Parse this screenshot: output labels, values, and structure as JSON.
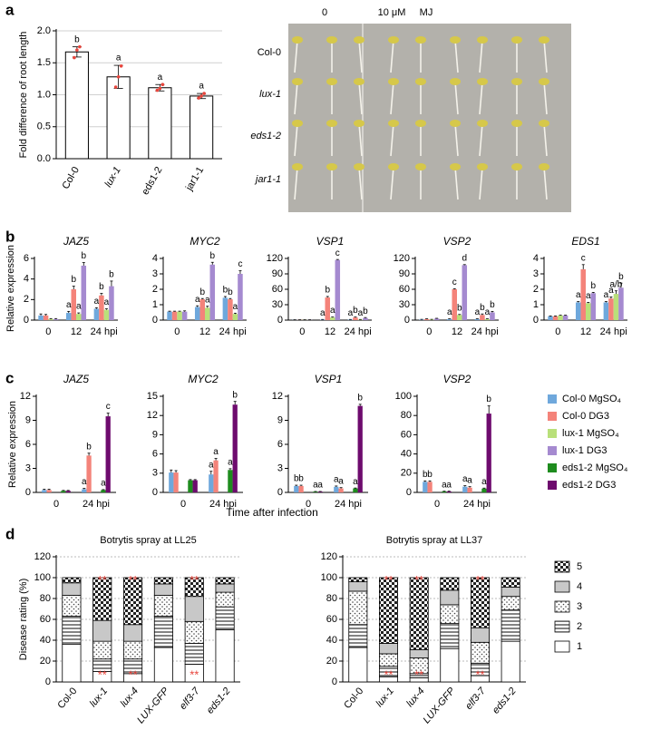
{
  "panel_labels": [
    "a",
    "b",
    "c",
    "d"
  ],
  "photo": {
    "column_labels": [
      "0",
      "10 μM",
      "MJ"
    ],
    "row_labels": [
      "Col-0",
      "lux-1",
      "eds1-2",
      "jar1-1"
    ]
  },
  "chart_data": [
    {
      "type": "bar",
      "categories": [
        "Col-0",
        "lux-1",
        "eds1-2",
        "jar1-1"
      ],
      "values": [
        1.67,
        1.28,
        1.11,
        0.98
      ],
      "errors": [
        0.08,
        0.18,
        0.05,
        0.04
      ],
      "letters": [
        "b",
        "a",
        "a",
        "a"
      ],
      "points": [
        [
          1.58,
          1.7,
          1.75
        ],
        [
          1.12,
          1.28,
          1.45
        ],
        [
          1.07,
          1.1,
          1.16
        ],
        [
          0.95,
          0.98,
          1.02
        ]
      ],
      "color": "#ffffff",
      "point_color": "#e8453c",
      "ylabel": "Fold difference of root length",
      "ylim": [
        0,
        2
      ],
      "yticks": [
        {
          "value": 0,
          "label": "0.0"
        },
        0.5,
        {
          "value": 1,
          "label": "1.0"
        },
        1.5,
        {
          "value": 2,
          "label": "2.0"
        }
      ],
      "grid": true
    },
    {
      "type": "groupedbar",
      "title": "JAZ5",
      "ylabel": "Relative expression",
      "categories": [
        "0",
        "12",
        "24 hpi"
      ],
      "ylim": [
        0,
        6
      ],
      "yticks": [
        0,
        2,
        4,
        6
      ],
      "series": [
        {
          "color": "#6fa8dc",
          "values": [
            0.45,
            0.7,
            1.1
          ],
          "errors": [
            0.15,
            0.15,
            0.1
          ],
          "letters": [
            null,
            "a",
            "a"
          ]
        },
        {
          "color": "#f4837a",
          "values": [
            0.45,
            3.0,
            2.4
          ],
          "errors": [
            0.1,
            0.3,
            0.2
          ],
          "letters": [
            null,
            "b",
            "b"
          ]
        },
        {
          "color": "#b9e07a",
          "values": [
            0.1,
            0.6,
            1.0
          ],
          "errors": [
            0.05,
            0.1,
            0.1
          ],
          "letters": [
            null,
            "a",
            "a"
          ]
        },
        {
          "color": "#a58ad0",
          "values": [
            0.1,
            5.3,
            3.3
          ],
          "errors": [
            0.05,
            0.3,
            0.5
          ],
          "letters": [
            null,
            "b",
            "b"
          ]
        }
      ]
    },
    {
      "type": "groupedbar",
      "title": "MYC2",
      "categories": [
        "0",
        "12",
        "24 hpi"
      ],
      "ylim": [
        0,
        4
      ],
      "yticks": [
        0,
        1,
        2,
        3,
        4
      ],
      "series": [
        {
          "color": "#6fa8dc",
          "values": [
            0.55,
            0.85,
            1.45
          ],
          "errors": [
            0.03,
            0.08,
            0.08
          ],
          "letters": [
            null,
            "a",
            "b"
          ]
        },
        {
          "color": "#f4837a",
          "values": [
            0.55,
            1.35,
            1.35
          ],
          "errors": [
            0.03,
            0.05,
            0.05
          ],
          "letters": [
            null,
            "b",
            "b"
          ]
        },
        {
          "color": "#b9e07a",
          "values": [
            0.55,
            0.8,
            0.4
          ],
          "errors": [
            0.03,
            0.1,
            0.05
          ],
          "letters": [
            null,
            "a",
            "a"
          ]
        },
        {
          "color": "#a58ad0",
          "values": [
            0.55,
            3.6,
            3.0
          ],
          "errors": [
            0.05,
            0.15,
            0.2
          ],
          "letters": [
            null,
            "b",
            "c"
          ]
        }
      ]
    },
    {
      "type": "groupedbar",
      "title": "VSP1",
      "categories": [
        "0",
        "12",
        "24 hpi"
      ],
      "ylim": [
        0,
        120
      ],
      "yticks": [
        0,
        30,
        60,
        90,
        120
      ],
      "series": [
        {
          "color": "#6fa8dc",
          "values": [
            0.5,
            1,
            1
          ],
          "errors": [
            0.2,
            0.3,
            0.3
          ],
          "letters": [
            null,
            "a",
            "a"
          ]
        },
        {
          "color": "#f4837a",
          "values": [
            0.5,
            44,
            5
          ],
          "errors": [
            0.2,
            2,
            1
          ],
          "letters": [
            null,
            "b",
            "b"
          ]
        },
        {
          "color": "#b9e07a",
          "values": [
            0.5,
            5,
            1
          ],
          "errors": [
            0.2,
            1,
            0.3
          ],
          "letters": [
            null,
            "a",
            "a"
          ]
        },
        {
          "color": "#a58ad0",
          "values": [
            0.5,
            117,
            4
          ],
          "errors": [
            0.2,
            1,
            1
          ],
          "letters": [
            null,
            "c",
            "b"
          ]
        }
      ]
    },
    {
      "type": "groupedbar",
      "title": "VSP2",
      "categories": [
        "0",
        "12",
        "24 hpi"
      ],
      "ylim": [
        0,
        120
      ],
      "yticks": [
        0,
        30,
        60,
        90,
        120
      ],
      "series": [
        {
          "color": "#6fa8dc",
          "values": [
            1,
            2,
            2
          ],
          "errors": [
            0.5,
            0.5,
            0.5
          ],
          "letters": [
            null,
            "a",
            "a"
          ]
        },
        {
          "color": "#f4837a",
          "values": [
            2,
            60,
            10
          ],
          "errors": [
            0.5,
            1,
            2
          ],
          "letters": [
            null,
            "c",
            "b"
          ]
        },
        {
          "color": "#b9e07a",
          "values": [
            1,
            10,
            2
          ],
          "errors": [
            0.5,
            1,
            0.5
          ],
          "letters": [
            null,
            "b",
            "a"
          ]
        },
        {
          "color": "#a58ad0",
          "values": [
            3,
            107,
            15
          ],
          "errors": [
            0.5,
            1,
            2
          ],
          "letters": [
            null,
            "d",
            "b"
          ]
        }
      ]
    },
    {
      "type": "groupedbar",
      "title": "EDS1",
      "categories": [
        "0",
        "12",
        "24 hpi"
      ],
      "ylim": [
        0,
        4
      ],
      "yticks": [
        0,
        1,
        2,
        3,
        4
      ],
      "series": [
        {
          "color": "#6fa8dc",
          "values": [
            0.25,
            1.15,
            1.15
          ],
          "errors": [
            0.02,
            0.05,
            0.05
          ],
          "letters": [
            null,
            "a",
            "a"
          ]
        },
        {
          "color": "#f4837a",
          "values": [
            0.25,
            3.3,
            1.4
          ],
          "errors": [
            0.02,
            0.3,
            0.1
          ],
          "letters": [
            null,
            "c",
            "a"
          ]
        },
        {
          "color": "#b9e07a",
          "values": [
            0.3,
            1.1,
            1.7
          ],
          "errors": [
            0.02,
            0.05,
            0.2
          ],
          "letters": [
            null,
            "a",
            "a/b"
          ]
        },
        {
          "color": "#a58ad0",
          "values": [
            0.3,
            1.75,
            2.1
          ],
          "errors": [
            0.02,
            0.05,
            0.3
          ],
          "letters": [
            null,
            "b",
            "b"
          ]
        }
      ]
    },
    {
      "type": "groupedbar",
      "title": "JAZ5",
      "ylabel": "Relative expression",
      "xlabel": "Time after infection",
      "categories": [
        "0",
        "24 hpi"
      ],
      "ylim": [
        0,
        12
      ],
      "yticks": [
        0,
        3,
        6,
        9,
        12
      ],
      "series": [
        {
          "name": "Col-0 MgSO₄",
          "color": "#6fa8dc",
          "values": [
            0.3,
            0.4
          ],
          "errors": [
            0.1,
            0.1
          ],
          "letters": [
            null,
            "a"
          ]
        },
        {
          "name": "Col-0 DG3",
          "color": "#f4837a",
          "values": [
            0.3,
            4.6
          ],
          "errors": [
            0.1,
            0.3
          ],
          "letters": [
            null,
            "b"
          ]
        },
        {
          "name": "lux-1 MgSO₄",
          "color": "#b9e07a",
          "values": [
            null,
            null
          ]
        },
        {
          "name": "lux-1 DG3",
          "color": "#a58ad0",
          "values": [
            null,
            null
          ]
        },
        {
          "name": "eds1-2 MgSO₄",
          "color": "#1e8c1e",
          "values": [
            0.2,
            0.3
          ],
          "errors": [
            0.05,
            0.05
          ],
          "letters": [
            null,
            "a"
          ]
        },
        {
          "name": "eds1-2 DG3",
          "color": "#6e0b6e",
          "values": [
            0.2,
            9.5
          ],
          "errors": [
            0.05,
            0.4
          ],
          "letters": [
            null,
            "c"
          ]
        }
      ]
    },
    {
      "type": "groupedbar",
      "title": "MYC2",
      "categories": [
        "0",
        "24 hpi"
      ],
      "ylim": [
        0,
        15
      ],
      "yticks": [
        0,
        3,
        6,
        9,
        12,
        15
      ],
      "series": [
        {
          "color": "#6fa8dc",
          "values": [
            3.1,
            2.8
          ],
          "errors": [
            0.4,
            0.5
          ],
          "letters": [
            null,
            "a"
          ]
        },
        {
          "color": "#f4837a",
          "values": [
            3.1,
            5.0
          ],
          "errors": [
            0.3,
            0.3
          ],
          "letters": [
            null,
            "a"
          ]
        },
        {
          "color": "#b9e07a",
          "values": [
            null,
            null
          ]
        },
        {
          "color": "#a58ad0",
          "values": [
            null,
            null
          ]
        },
        {
          "color": "#1e8c1e",
          "values": [
            1.9,
            3.5
          ],
          "errors": [
            0.1,
            0.2
          ],
          "letters": [
            null,
            "a"
          ]
        },
        {
          "color": "#6e0b6e",
          "values": [
            1.9,
            13.7
          ],
          "errors": [
            0.1,
            0.5
          ],
          "letters": [
            null,
            "b"
          ]
        }
      ]
    },
    {
      "type": "groupedbar",
      "title": "VSP1",
      "categories": [
        "0",
        "24 hpi"
      ],
      "ylim": [
        0,
        12
      ],
      "yticks": [
        0,
        3,
        6,
        9,
        12
      ],
      "series": [
        {
          "color": "#6fa8dc",
          "values": [
            0.8,
            0.7
          ],
          "errors": [
            0.1,
            0.1
          ],
          "letters": [
            "b",
            "a"
          ]
        },
        {
          "color": "#f4837a",
          "values": [
            0.8,
            0.5
          ],
          "errors": [
            0.1,
            0.1
          ],
          "letters": [
            "b",
            "a"
          ]
        },
        {
          "color": "#b9e07a",
          "values": [
            null,
            null
          ]
        },
        {
          "color": "#a58ad0",
          "values": [
            null,
            null
          ]
        },
        {
          "color": "#1e8c1e",
          "values": [
            0.1,
            0.5
          ],
          "errors": [
            0.02,
            0.05
          ],
          "letters": [
            "a",
            "a"
          ]
        },
        {
          "color": "#6e0b6e",
          "values": [
            0.1,
            10.8
          ],
          "errors": [
            0.02,
            0.2
          ],
          "letters": [
            "a",
            "b"
          ]
        }
      ]
    },
    {
      "type": "groupedbar",
      "title": "VSP2",
      "categories": [
        "0",
        "24 hpi"
      ],
      "ylim": [
        0,
        100
      ],
      "yticks": [
        0,
        20,
        40,
        60,
        80,
        100
      ],
      "series": [
        {
          "color": "#6fa8dc",
          "values": [
            11,
            6
          ],
          "errors": [
            1,
            1
          ],
          "letters": [
            "b",
            "a"
          ]
        },
        {
          "color": "#f4837a",
          "values": [
            11,
            5
          ],
          "errors": [
            1,
            1
          ],
          "letters": [
            "b",
            "a"
          ]
        },
        {
          "color": "#b9e07a",
          "values": [
            null,
            null
          ]
        },
        {
          "color": "#a58ad0",
          "values": [
            null,
            null
          ]
        },
        {
          "color": "#1e8c1e",
          "values": [
            1,
            4
          ],
          "errors": [
            0.3,
            0.5
          ],
          "letters": [
            "a",
            "a"
          ]
        },
        {
          "color": "#6e0b6e",
          "values": [
            1,
            82
          ],
          "errors": [
            0.3,
            8
          ],
          "letters": [
            "a",
            "b"
          ]
        }
      ]
    },
    {
      "type": "stackedbar",
      "title": "Botrytis spray at LL25",
      "ylabel": "Disease rating (%)",
      "categories": [
        "Col-0",
        "lux-1",
        "lux-4",
        "LUX-GFP",
        "elf3-7",
        "eds1-2"
      ],
      "ylim": [
        0,
        120
      ],
      "yticks": [
        0,
        20,
        40,
        60,
        80,
        100,
        120
      ],
      "grid": true,
      "significance_color": "#e8453c",
      "significance_low": [
        null,
        "**",
        "**",
        null,
        "**",
        null
      ],
      "significance_high": [
        null,
        "**",
        "**",
        null,
        "**",
        null
      ],
      "series": [
        {
          "name": "1",
          "pattern": "blank",
          "values": [
            36,
            10,
            8,
            33,
            17,
            50
          ]
        },
        {
          "name": "2",
          "pattern": "stripes",
          "values": [
            27,
            12,
            14,
            30,
            20,
            22
          ]
        },
        {
          "name": "3",
          "pattern": "dots",
          "values": [
            20,
            17,
            17,
            20,
            21,
            14
          ]
        },
        {
          "name": "4",
          "pattern": "gray",
          "values": [
            12,
            20,
            16,
            11,
            24,
            8
          ]
        },
        {
          "name": "5",
          "pattern": "checker",
          "values": [
            5,
            41,
            45,
            6,
            18,
            6
          ]
        }
      ]
    },
    {
      "type": "stackedbar",
      "title": "Botrytis spray at LL37",
      "categories": [
        "Col-0",
        "lux-1",
        "lux-4",
        "LUX-GFP",
        "elf3-7",
        "eds1-2"
      ],
      "ylim": [
        0,
        120
      ],
      "yticks": [
        0,
        20,
        40,
        60,
        80,
        100,
        120
      ],
      "grid": true,
      "significance_color": "#e8453c",
      "significance_low": [
        null,
        "**",
        "**",
        null,
        "**",
        null
      ],
      "significance_high": [
        null,
        "**",
        "**",
        null,
        "**",
        null
      ],
      "series": [
        {
          "pattern": "blank",
          "values": [
            33,
            5,
            4,
            32,
            6,
            39
          ]
        },
        {
          "pattern": "stripes",
          "values": [
            22,
            10,
            4,
            24,
            12,
            30
          ]
        },
        {
          "pattern": "dots",
          "values": [
            32,
            12,
            15,
            18,
            20,
            13
          ]
        },
        {
          "pattern": "gray",
          "values": [
            9,
            10,
            8,
            14,
            14,
            9
          ]
        },
        {
          "pattern": "checker",
          "values": [
            4,
            63,
            69,
            12,
            48,
            9
          ]
        }
      ]
    }
  ]
}
